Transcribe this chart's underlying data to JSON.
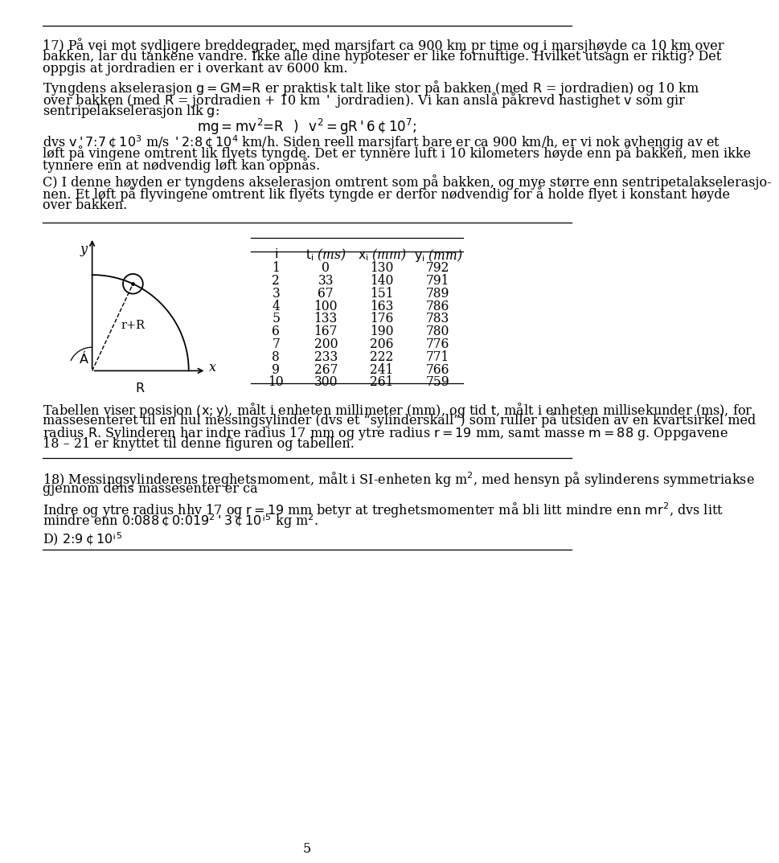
{
  "page_num": "5",
  "bg_color": "#ffffff",
  "text_color": "#000000",
  "lines17": [
    "17) På vei mot sydligere breddegrader, med marsjfart ca 900 km pr time og i marsjhøyde ca 10 km over",
    "bakken, lar du tankene vandre. Ikke alle dine hypoteser er like fornuftige. Hvilket utsagn er riktig? Det",
    "oppgis at jordradien er i overkant av 6000 km."
  ],
  "para1_lines": [
    "Tyngdens akselerasjon $g = GM/R$ er praktisk talt like stor på bakken (med $R$ = jordradien) og 10 km",
    "over bakken (med $R$ = jordradien + 10 km $\\simeq$ jordradien). Vi kan anslå påkrevd hastighet $v$ som gir",
    "sentripelakselerasjon lik $g$:"
  ],
  "formula1": "$mg = mv^2/R \\;\\;\\Rightarrow\\;\\; v^2 = gR \\simeq 6 \\cdot 10^7,$",
  "after_formula_lines": [
    "dvs $v \\simeq 7.7 \\cdot 10^3$ m/s $\\simeq 2.8 \\cdot 10^4$ km/h. Siden reell marsjfart bare er ca 900 km/h, er vi nok avhengig av et",
    "løft på vingene omtrent lik flyets tyngde. Det er tynnere luft i 10 kilometers høyde enn på bakken, men ikke",
    "tynnere enn at nødvendig løft kan oppnås."
  ],
  "para_c_lines": [
    "C) I denne høyden er tyngdens akselerasjon omtrent som på bakken, og mye større enn sentripetalakselerasjo-",
    "nen. Et løft på flyvingene omtrent lik flyets tyngde er derfor nødvendig for å holde flyet i konstant høyde",
    "over bakken."
  ],
  "table_headers": [
    "$i$",
    "$t_i$ (ms)",
    "$x_i$ (mm)",
    "$y_i$ (mm)"
  ],
  "table_data": [
    [
      1,
      0,
      130,
      792
    ],
    [
      2,
      33,
      140,
      791
    ],
    [
      3,
      67,
      151,
      789
    ],
    [
      4,
      100,
      163,
      786
    ],
    [
      5,
      133,
      176,
      783
    ],
    [
      6,
      167,
      190,
      780
    ],
    [
      7,
      200,
      206,
      776
    ],
    [
      8,
      233,
      222,
      771
    ],
    [
      9,
      267,
      241,
      766
    ],
    [
      10,
      300,
      261,
      759
    ]
  ],
  "caption_lines": [
    "Tabellen viser posisjon $(x, y)$, målt i enheten millimeter (mm), og tid $t$, målt i enheten millisekunder (ms), for",
    "massesenteret til en hul messingsylinder (dvs et “sylinderskall”) som ruller på utsiden av en kvartsirkel med",
    "radius $R$. Sylinderen har indre radius 17 mm og ytre radius $r = 19$ mm, samt masse $m = 88$ g. Oppgavene",
    "18 – 21 er knyttet til denne figuren og tabellen."
  ],
  "sec18_lines": [
    "18) Messingsylinderens treghetsmoment, målt i SI-enheten kg m$^2$, med hensyn på sylinderens symmetriakse",
    "gjennom dens massesenter er ca"
  ],
  "para18_lines": [
    "Indre og ytre radius hhv 17 og $r = 19$ mm betyr at treghetsmomentет må bli litt mindre enn $mr^2$, dvs litt",
    "mindre enn $0.088 \\cdot 0.019^2 \\simeq 3 \\cdot 10^{-5}$ kg m$^2$."
  ],
  "answer18": "D) $2.9 \\cdot 10^{-5}$"
}
